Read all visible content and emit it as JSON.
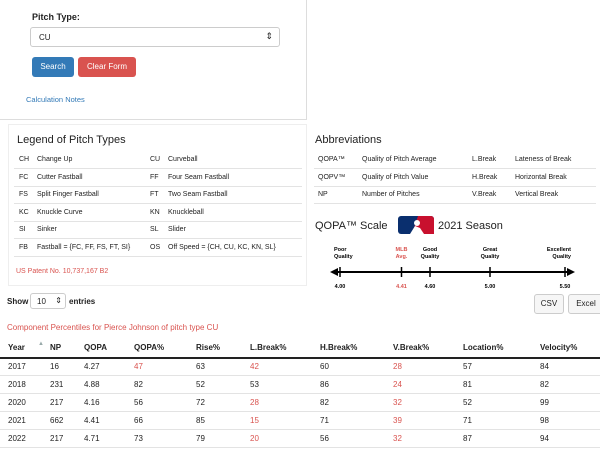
{
  "form": {
    "label": "Pitch Type:",
    "selected": "CU",
    "search": "Search",
    "clear": "Clear Form",
    "notes": "Calculation Notes"
  },
  "legend": {
    "title": "Legend of Pitch Types",
    "rows": [
      [
        [
          "CH",
          "Change Up"
        ],
        [
          "CU",
          "Curveball"
        ]
      ],
      [
        [
          "FC",
          "Cutter Fastball"
        ],
        [
          "FF",
          "Four Seam Fastball"
        ]
      ],
      [
        [
          "FS",
          "Split Finger Fastball"
        ],
        [
          "FT",
          "Two Seam Fastball"
        ]
      ],
      [
        [
          "KC",
          "Knuckle Curve"
        ],
        [
          "KN",
          "Knuckleball"
        ]
      ],
      [
        [
          "SI",
          "Sinker"
        ],
        [
          "SL",
          "Slider"
        ]
      ],
      [
        [
          "FB",
          "Fastball = {FC, FF, FS, FT, SI}"
        ],
        [
          "OS",
          "Off Speed = {CH, CU, KC, KN, SL}"
        ]
      ]
    ],
    "patent": "US Patent No. 10,737,167 B2"
  },
  "abbreviations": {
    "title": "Abbreviations",
    "rows": [
      [
        [
          "QOPA™",
          "Quality of Pitch Average"
        ],
        [
          "L.Break",
          "Lateness of Break"
        ]
      ],
      [
        [
          "QOPV™",
          "Quality of Pitch Value"
        ],
        [
          "H.Break",
          "Horizontal Break"
        ]
      ],
      [
        [
          "NP",
          "Number of Pitches"
        ],
        [
          "V.Break",
          "Vertical Break"
        ]
      ]
    ]
  },
  "scale": {
    "title": "QOPA™ Scale",
    "season": "2021 Season",
    "points": [
      {
        "lines": [
          "Poor",
          "Quality"
        ],
        "value": 4,
        "label": "4.00"
      },
      {
        "lines": [
          "MLB",
          "Avg."
        ],
        "value": 4.41,
        "label": "4.41",
        "color": "#d9534f"
      },
      {
        "lines": [
          "Good",
          "Quality"
        ],
        "value": 4.6,
        "label": "4.60"
      },
      {
        "lines": [
          "Great",
          "Quality"
        ],
        "value": 5,
        "label": "5.00"
      },
      {
        "lines": [
          "Excellent",
          "Quality"
        ],
        "value": 5.5,
        "label": "5.50"
      }
    ]
  },
  "controls": {
    "show": "Show",
    "entries_value": "10",
    "entries": "entries",
    "csv": "CSV",
    "excel": "Excel"
  },
  "table": {
    "caption": "Component Percentiles for Pierce Johnson of pitch type CU",
    "low_threshold": 50,
    "low_color": "#d9534f",
    "headers": [
      "Year",
      "NP",
      "QOPA",
      "QOPA%",
      "Rise%",
      "L.Break%",
      "H.Break%",
      "V.Break%",
      "Location%",
      "Velocity%"
    ],
    "rows": [
      [
        2017,
        16,
        4.27,
        47,
        63,
        42,
        60,
        28,
        57,
        84
      ],
      [
        2018,
        231,
        4.88,
        82,
        52,
        53,
        86,
        24,
        81,
        82
      ],
      [
        2020,
        217,
        4.16,
        56,
        72,
        28,
        82,
        32,
        52,
        99
      ],
      [
        2021,
        662,
        4.41,
        66,
        85,
        15,
        71,
        39,
        71,
        98
      ],
      [
        2022,
        217,
        4.71,
        73,
        79,
        20,
        56,
        32,
        87,
        94
      ]
    ]
  }
}
